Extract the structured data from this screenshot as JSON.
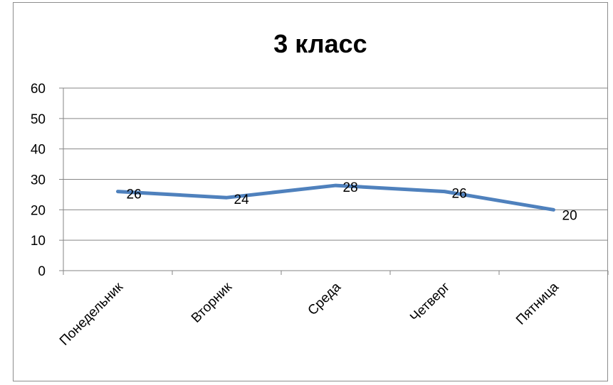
{
  "chart_data": {
    "type": "line",
    "title": "3 класс",
    "categories": [
      "Понедельник",
      "Вторник",
      "Среда",
      "Четверг",
      "Пятница"
    ],
    "series": [
      {
        "values": [
          26,
          24,
          28,
          26,
          20
        ],
        "color": "#4f81bd"
      }
    ],
    "data_labels": [
      "26",
      "24",
      "28",
      "26",
      "20"
    ],
    "y_ticks": [
      "0",
      "10",
      "20",
      "30",
      "40",
      "50",
      "60"
    ],
    "ylim": [
      0,
      60
    ],
    "grid": true,
    "legend": "none"
  }
}
